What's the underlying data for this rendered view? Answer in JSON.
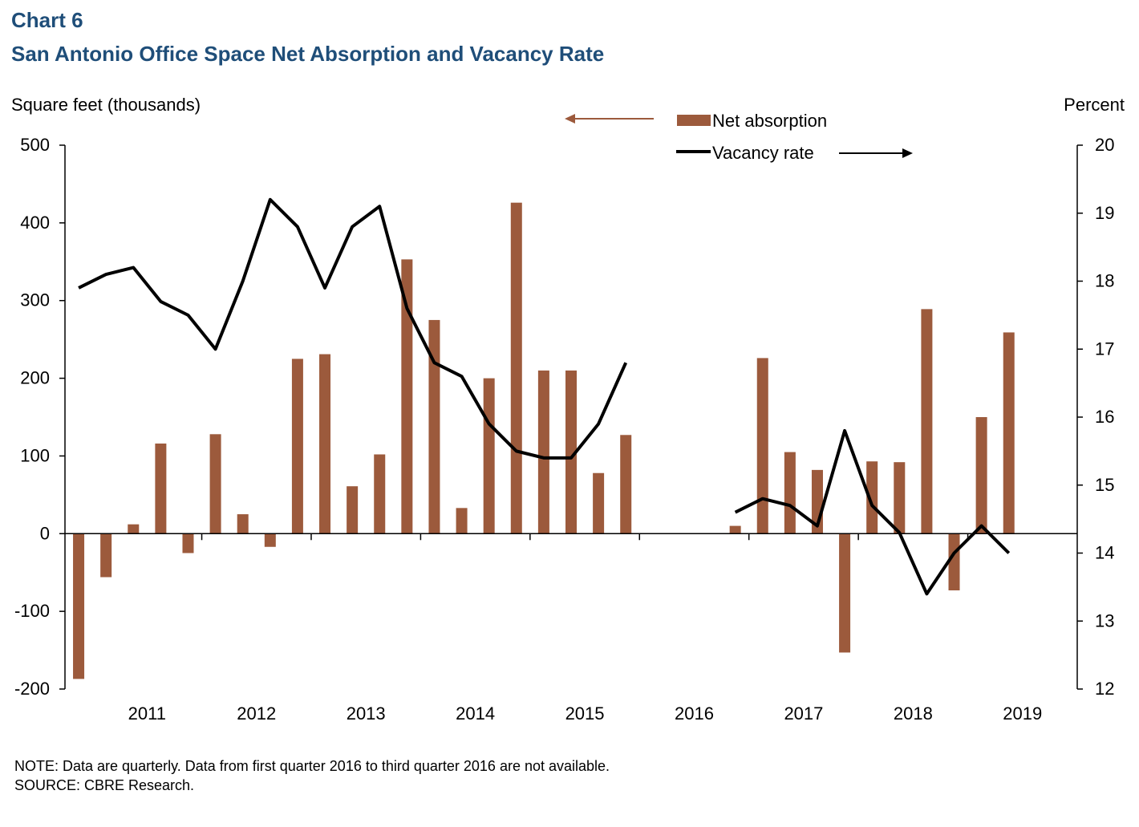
{
  "header": {
    "chart_number": "Chart 6",
    "title": "San Antonio Office Space Net Absorption and Vacancy Rate"
  },
  "axes": {
    "left_unit": "Square feet (thousands)",
    "right_unit": "Percent"
  },
  "footer": {
    "note": "NOTE: Data are quarterly. Data from first quarter 2016 to third quarter 2016 are not available.",
    "source": "SOURCE: CBRE Research."
  },
  "colors": {
    "bar": "#9c5a3c",
    "line": "#000000",
    "title": "#1f4e79",
    "left_arrow": "#9c5a3c",
    "right_arrow": "#000000"
  },
  "chart_data": {
    "type": "bar",
    "title": "San Antonio Office Space Net Absorption and Vacancy Rate",
    "ylabel": "Square feet (thousands)",
    "y2label": "Percent",
    "ylim": [
      -200,
      500
    ],
    "y2lim": [
      12,
      20
    ],
    "yticks": [
      -200,
      -100,
      0,
      100,
      200,
      300,
      400,
      500
    ],
    "y2ticks": [
      12,
      13,
      14,
      15,
      16,
      17,
      18,
      19,
      20
    ],
    "xtick_labels": [
      "2011",
      "2012",
      "2013",
      "2014",
      "2015",
      "2016",
      "2017",
      "2018",
      "2019"
    ],
    "legend_position": "top-center",
    "grid": false,
    "periods": [
      "2010Q4",
      "2011Q1",
      "2011Q2",
      "2011Q3",
      "2011Q4",
      "2012Q1",
      "2012Q2",
      "2012Q3",
      "2012Q4",
      "2013Q1",
      "2013Q2",
      "2013Q3",
      "2013Q4",
      "2014Q1",
      "2014Q2",
      "2014Q3",
      "2014Q4",
      "2015Q1",
      "2015Q2",
      "2015Q3",
      "2015Q4",
      "2016Q1",
      "2016Q2",
      "2016Q3",
      "2016Q4",
      "2017Q1",
      "2017Q2",
      "2017Q3",
      "2017Q4",
      "2018Q1",
      "2018Q2",
      "2018Q3",
      "2018Q4",
      "2019Q1",
      "2019Q2",
      "2019Q3",
      "2019Q4"
    ],
    "series": [
      {
        "name": "Net absorption",
        "type": "bar",
        "axis": "left",
        "values": [
          -187,
          -56,
          12,
          116,
          -25,
          128,
          25,
          -17,
          225,
          231,
          61,
          102,
          353,
          275,
          33,
          200,
          426,
          210,
          210,
          78,
          127,
          null,
          null,
          null,
          10,
          226,
          105,
          82,
          -153,
          93,
          92,
          289,
          -73,
          150,
          259,
          null,
          null
        ]
      },
      {
        "name": "Vacancy rate",
        "type": "line",
        "axis": "right",
        "values": [
          17.9,
          18.1,
          18.2,
          17.7,
          17.5,
          17.0,
          18.0,
          19.2,
          18.8,
          17.9,
          18.8,
          19.1,
          17.6,
          16.8,
          16.6,
          15.9,
          15.5,
          15.4,
          15.4,
          15.9,
          16.8,
          null,
          null,
          null,
          14.6,
          14.8,
          14.7,
          14.4,
          15.8,
          14.7,
          14.3,
          13.4,
          14.0,
          14.4,
          14.0,
          null,
          null
        ]
      }
    ]
  }
}
